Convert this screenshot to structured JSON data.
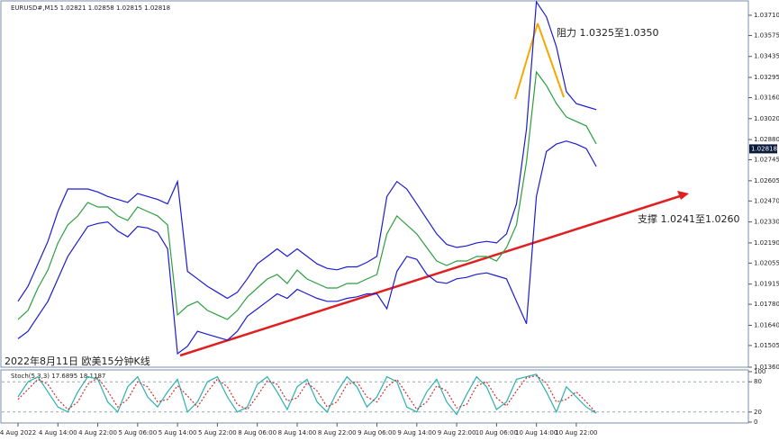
{
  "chart_data": [
    {
      "type": "line",
      "title": "EURUSD#,M15  1.02821 1.02858 1.02815 1.02818",
      "categories": [
        "4 Aug 2022",
        null,
        null,
        null,
        "4 Aug 14:00",
        null,
        null,
        null,
        "4 Aug 22:00",
        null,
        null,
        null,
        "5 Aug 06:00",
        null,
        null,
        null,
        "5 Aug 14:00",
        null,
        null,
        null,
        "5 Aug 22:00",
        null,
        null,
        null,
        "8 Aug 06:00",
        null,
        null,
        null,
        "8 Aug 14:00",
        null,
        null,
        null,
        "8 Aug 22:00",
        null,
        null,
        null,
        "9 Aug 06:00",
        null,
        null,
        null,
        "9 Aug 14:00",
        null,
        null,
        null,
        "9 Aug 22:00",
        null,
        null,
        null,
        "10 Aug 06:00",
        null,
        null,
        null,
        "10 Aug 14:00",
        null,
        null,
        null,
        "10 Aug 22:00",
        null,
        null
      ],
      "series": [
        {
          "color": "#2e9e3e",
          "values": [
            1.01679,
            1.01739,
            1.01889,
            1.02009,
            1.02189,
            1.0231,
            1.0237,
            1.0246,
            1.0243,
            1.0243,
            1.0237,
            1.0234,
            1.0243,
            1.024,
            1.0237,
            1.0231,
            1.01709,
            1.01769,
            1.01799,
            1.01739,
            1.01709,
            1.01679,
            1.01739,
            1.01829,
            1.01889,
            1.01949,
            1.01979,
            1.01919,
            1.02009,
            1.01949,
            1.01919,
            1.01889,
            1.01889,
            1.01919,
            1.01919,
            1.01949,
            1.01979,
            1.0225,
            1.0237,
            1.0231,
            1.0225,
            1.02159,
            1.02069,
            1.02039,
            1.02069,
            1.02069,
            1.02099,
            1.02099,
            1.02069,
            1.02159,
            1.0231,
            1.0273,
            1.03331,
            1.03241,
            1.03121,
            1.03031,
            1.03001,
            1.02971,
            1.02851
          ]
        },
        {
          "color": "#1c1cd0",
          "values": [
            1.018,
            1.019,
            1.0205,
            1.022,
            1.024,
            1.0255,
            1.0255,
            1.0255,
            1.0253,
            1.025,
            1.0248,
            1.0246,
            1.0252,
            1.025,
            1.0248,
            1.0245,
            1.026,
            1.02,
            1.0195,
            1.019,
            1.0186,
            1.0182,
            1.0186,
            1.0195,
            1.0205,
            1.021,
            1.0215,
            1.021,
            1.0215,
            1.021,
            1.0205,
            1.0202,
            1.0201,
            1.0203,
            1.0203,
            1.0206,
            1.021,
            1.025,
            1.026,
            1.0255,
            1.0245,
            1.0235,
            1.0225,
            1.0218,
            1.0216,
            1.0217,
            1.0219,
            1.022,
            1.0219,
            1.0225,
            1.0245,
            1.0295,
            1.038,
            1.037,
            1.035,
            1.032,
            1.0312,
            1.031,
            1.0308
          ]
        },
        {
          "color": "#1c1cd0",
          "values": [
            1.0155,
            1.016,
            1.017,
            1.018,
            1.0195,
            1.021,
            1.022,
            1.023,
            1.0232,
            1.0233,
            1.0227,
            1.0223,
            1.023,
            1.0229,
            1.0226,
            1.0215,
            1.0145,
            1.015,
            1.016,
            1.0158,
            1.0156,
            1.0154,
            1.016,
            1.017,
            1.0175,
            1.018,
            1.0185,
            1.0182,
            1.0188,
            1.0185,
            1.0182,
            1.018,
            1.018,
            1.0182,
            1.0183,
            1.0185,
            1.0185,
            1.0175,
            1.02,
            1.021,
            1.0208,
            1.0198,
            1.0193,
            1.0192,
            1.0195,
            1.0196,
            1.0198,
            1.0199,
            1.0197,
            1.0195,
            1.018,
            1.0165,
            1.025,
            1.028,
            1.0285,
            1.0287,
            1.0285,
            1.0282,
            1.027
          ]
        }
      ],
      "ylim": [
        1.0136,
        1.038
      ],
      "yticks": [
        {
          "value": 1.0371,
          "label": "1.03710"
        },
        {
          "value": 1.03575,
          "label": "1.03575"
        },
        {
          "value": 1.03435,
          "label": "1.03435"
        },
        {
          "value": 1.03295,
          "label": "1.03295"
        },
        {
          "value": 1.0316,
          "label": "1.03160"
        },
        {
          "value": 1.0302,
          "label": "1.03020"
        },
        {
          "value": 1.0288,
          "label": "1.02880"
        },
        {
          "value": 1.02745,
          "label": "1.02745"
        },
        {
          "value": 1.02605,
          "label": "1.02605"
        },
        {
          "value": 1.0247,
          "label": "1.02470"
        },
        {
          "value": 1.0233,
          "label": "1.02330"
        },
        {
          "value": 1.0219,
          "label": "1.02190"
        },
        {
          "value": 1.02055,
          "label": "1.02055"
        },
        {
          "value": 1.01915,
          "label": "1.01915"
        },
        {
          "value": 1.0178,
          "label": "1.01780"
        },
        {
          "value": 1.0164,
          "label": "1.01640"
        },
        {
          "value": 1.01505,
          "label": "1.01505"
        },
        {
          "value": 1.0136,
          "label": "1.01360"
        }
      ],
      "last_price": {
        "value": 1.02818,
        "label": "1.02818"
      },
      "annotations": {
        "resistance": "阻力 1.0325至1.0350",
        "support": "支撑 1.0241至1.0260",
        "caption": "2022年8月11日 欧美15分钟K线"
      }
    },
    {
      "type": "line",
      "title": "Stoch(5,3,3) 17.6895 18.1187",
      "series": [
        {
          "color": "#2bb0b0",
          "values": [
            50,
            80,
            90,
            60,
            30,
            20,
            60,
            90,
            85,
            40,
            20,
            70,
            90,
            50,
            30,
            60,
            85,
            20,
            40,
            80,
            90,
            50,
            20,
            30,
            75,
            90,
            60,
            25,
            70,
            85,
            40,
            20,
            60,
            90,
            70,
            30,
            50,
            90,
            80,
            30,
            20,
            60,
            85,
            40,
            15,
            55,
            90,
            70,
            25,
            40,
            85,
            90,
            95,
            60,
            20,
            70,
            50,
            30,
            17.6895
          ]
        },
        {
          "color": "#d03030",
          "dashed": true,
          "values": [
            45,
            65,
            85,
            75,
            45,
            25,
            40,
            75,
            88,
            62,
            30,
            45,
            80,
            70,
            40,
            45,
            72,
            52,
            30,
            60,
            85,
            70,
            35,
            25,
            52,
            82,
            75,
            42,
            48,
            78,
            62,
            30,
            40,
            75,
            80,
            50,
            40,
            70,
            85,
            55,
            25,
            40,
            72,
            62,
            28,
            35,
            72,
            80,
            48,
            32,
            62,
            88,
            92,
            78,
            40,
            45,
            60,
            40,
            18.1187
          ]
        }
      ],
      "ylim": [
        0,
        100
      ],
      "yticks": [
        100,
        80,
        20,
        0
      ],
      "grid": true
    }
  ]
}
